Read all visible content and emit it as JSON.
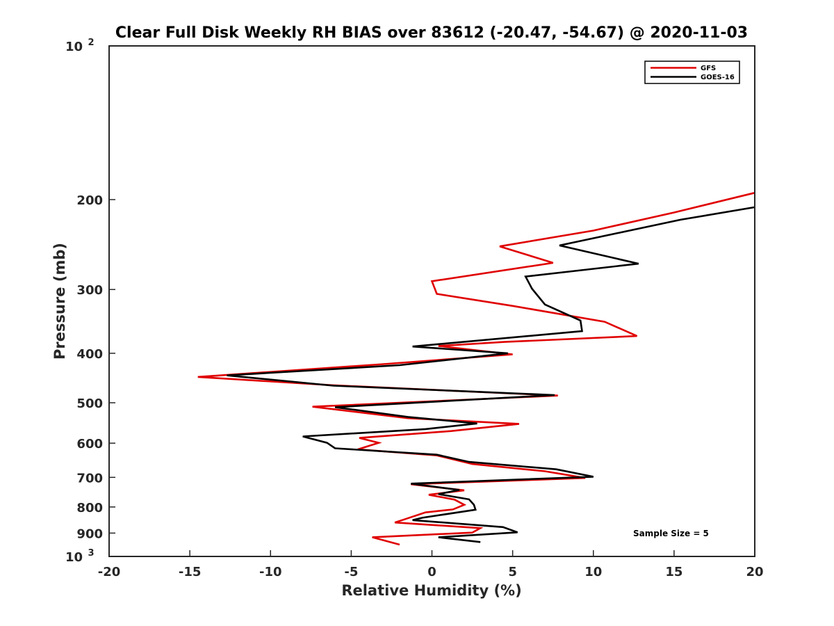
{
  "chart_data": {
    "type": "line",
    "title": "Clear Full Disk Weekly RH BIAS over 83612 (-20.47, -54.67) @ 2020-11-03",
    "xlabel": "Relative Humidity (%)",
    "ylabel": "Pressure (mb)",
    "xlim": [
      -20,
      20
    ],
    "ylim": [
      100,
      1000
    ],
    "y_scale": "log",
    "y_reversed": true,
    "x_ticks": [
      -20,
      -15,
      -10,
      -5,
      0,
      5,
      10,
      15,
      20
    ],
    "y_ticks": [
      {
        "value": 100,
        "label_base": "10",
        "label_exp": "2"
      },
      {
        "value": 200,
        "label_base": "200",
        "label_exp": ""
      },
      {
        "value": 300,
        "label_base": "300",
        "label_exp": ""
      },
      {
        "value": 400,
        "label_base": "400",
        "label_exp": ""
      },
      {
        "value": 500,
        "label_base": "500",
        "label_exp": ""
      },
      {
        "value": 600,
        "label_base": "600",
        "label_exp": ""
      },
      {
        "value": 700,
        "label_base": "700",
        "label_exp": ""
      },
      {
        "value": 800,
        "label_base": "800",
        "label_exp": ""
      },
      {
        "value": 900,
        "label_base": "900",
        "label_exp": ""
      },
      {
        "value": 1000,
        "label_base": "10",
        "label_exp": "3"
      }
    ],
    "grid": false,
    "legend_position": "top-right",
    "annotation": "Sample Size = 5",
    "series": [
      {
        "name": "GFS",
        "color": "#e00000",
        "points": [
          [
            20,
            194
          ],
          [
            15,
            212
          ],
          [
            10,
            230
          ],
          [
            4.2,
            247
          ],
          [
            7.5,
            266
          ],
          [
            0,
            289
          ],
          [
            0.3,
            306
          ],
          [
            5,
            323
          ],
          [
            10.7,
            347
          ],
          [
            12.7,
            370
          ],
          [
            4.5,
            380
          ],
          [
            0.4,
            387
          ],
          [
            5,
            402
          ],
          [
            -3,
            420
          ],
          [
            -14.5,
            445
          ],
          [
            -6.2,
            462
          ],
          [
            7.8,
            484
          ],
          [
            -7.4,
            509
          ],
          [
            -1.5,
            536
          ],
          [
            5.4,
            550
          ],
          [
            1.2,
            568
          ],
          [
            -4.5,
            586
          ],
          [
            -3.3,
            599
          ],
          [
            -4.6,
            617
          ],
          [
            0.3,
            634
          ],
          [
            2.5,
            659
          ],
          [
            7,
            681
          ],
          [
            9.5,
            702
          ],
          [
            -1.3,
            722
          ],
          [
            2,
            742
          ],
          [
            -0.2,
            757
          ],
          [
            1.4,
            774
          ],
          [
            2,
            792
          ],
          [
            1.3,
            809
          ],
          [
            -0.4,
            820
          ],
          [
            -1.7,
            846
          ],
          [
            -2.3,
            858
          ],
          [
            3,
            880
          ],
          [
            2.5,
            898
          ],
          [
            -3.7,
            917
          ],
          [
            -2,
            948
          ]
        ]
      },
      {
        "name": "GOES-16",
        "color": "#000000",
        "points": [
          [
            20,
            207
          ],
          [
            15.4,
            219
          ],
          [
            7.9,
            246
          ],
          [
            12.8,
            267
          ],
          [
            5.8,
            283
          ],
          [
            6.2,
            299
          ],
          [
            7,
            321
          ],
          [
            9.2,
            345
          ],
          [
            9.3,
            362
          ],
          [
            -1.2,
            388
          ],
          [
            4.7,
            400
          ],
          [
            -2,
            422
          ],
          [
            -12.7,
            442
          ],
          [
            -6.1,
            463
          ],
          [
            7.6,
            483
          ],
          [
            -6,
            510
          ],
          [
            -1.5,
            533
          ],
          [
            2.8,
            549
          ],
          [
            -0.4,
            563
          ],
          [
            -8,
            582
          ],
          [
            -6.5,
            599
          ],
          [
            -6,
            614
          ],
          [
            0.3,
            632
          ],
          [
            2.3,
            653
          ],
          [
            7.7,
            675
          ],
          [
            10,
            698
          ],
          [
            -1.3,
            720
          ],
          [
            1.7,
            741
          ],
          [
            0.4,
            755
          ],
          [
            2.3,
            773
          ],
          [
            2.6,
            792
          ],
          [
            2.7,
            810
          ],
          [
            -0.6,
            840
          ],
          [
            -1.2,
            849
          ],
          [
            4.4,
            876
          ],
          [
            5.3,
            897
          ],
          [
            0.4,
            917
          ],
          [
            3,
            937
          ]
        ]
      }
    ]
  }
}
